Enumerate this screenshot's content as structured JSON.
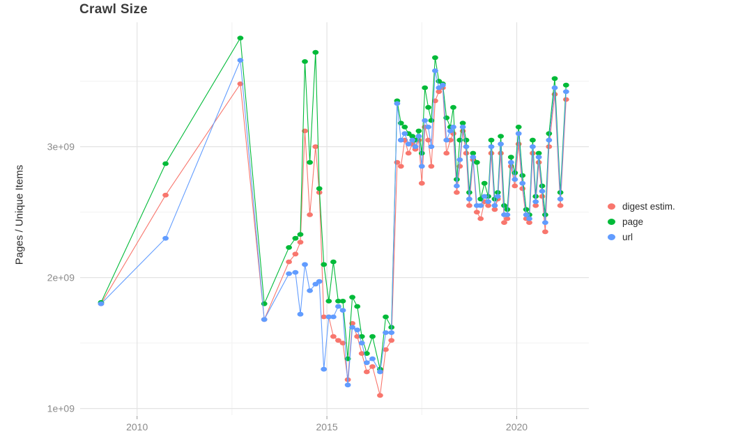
{
  "chart_data": {
    "type": "line",
    "markers": true,
    "title": "Crawl Size",
    "xlabel": "",
    "ylabel": "Pages / Unique Items",
    "x_range": [
      2008.5,
      2021.9
    ],
    "y_range": [
      0.95,
      3.95
    ],
    "y_scale": 1000000000.0,
    "x_ticks": {
      "values": [
        2010,
        2015,
        2020
      ],
      "labels": [
        "2010",
        "2015",
        "2020"
      ],
      "minor": [
        2012.5,
        2017.5
      ]
    },
    "y_ticks": {
      "values": [
        1,
        2,
        3
      ],
      "labels": [
        "1e+09",
        "2e+09",
        "3e+09"
      ],
      "minor": [
        1.5,
        2.5,
        3.5
      ]
    },
    "layout": {
      "grid": true,
      "legend_position": "right",
      "background": "#ffffff"
    },
    "colors": {
      "grid_major": "#e3e3e3",
      "grid_minor": "#f1f1f1",
      "tick_text": "#8a8a8a",
      "axis_tick": "#9a9a9a"
    },
    "series": [
      {
        "key": "digest",
        "name": "digest estim.",
        "color": "#F8766D",
        "column": 1
      },
      {
        "key": "page",
        "name": "page",
        "color": "#00BA38",
        "column": 2
      },
      {
        "key": "url",
        "name": "url",
        "color": "#619CFF",
        "column": 3
      }
    ],
    "points_format": [
      "year",
      "digest (1e9)",
      "page (1e9)",
      "url (1e9)"
    ],
    "points": [
      [
        2009.05,
        1.8,
        1.81,
        1.8
      ],
      [
        2010.75,
        2.63,
        2.87,
        2.3
      ],
      [
        2012.72,
        3.48,
        3.83,
        3.66
      ],
      [
        2013.35,
        1.68,
        1.8,
        1.68
      ],
      [
        2014.0,
        2.12,
        2.23,
        2.03
      ],
      [
        2014.17,
        2.18,
        2.3,
        2.04
      ],
      [
        2014.3,
        2.27,
        2.33,
        1.72
      ],
      [
        2014.42,
        3.12,
        3.65,
        2.1
      ],
      [
        2014.55,
        2.48,
        2.88,
        1.9
      ],
      [
        2014.7,
        3.0,
        3.72,
        1.95
      ],
      [
        2014.8,
        2.65,
        2.68,
        1.97
      ],
      [
        2014.92,
        1.7,
        2.1,
        1.3
      ],
      [
        2015.05,
        1.7,
        1.82,
        1.7
      ],
      [
        2015.17,
        1.55,
        2.12,
        1.7
      ],
      [
        2015.3,
        1.52,
        1.82,
        1.78
      ],
      [
        2015.42,
        1.5,
        1.82,
        1.75
      ],
      [
        2015.55,
        1.22,
        1.38,
        1.18
      ],
      [
        2015.67,
        1.65,
        1.85,
        1.62
      ],
      [
        2015.8,
        1.55,
        1.78,
        1.6
      ],
      [
        2015.92,
        1.42,
        1.55,
        1.5
      ],
      [
        2016.05,
        1.28,
        1.42,
        1.35
      ],
      [
        2016.2,
        1.32,
        1.55,
        1.38
      ],
      [
        2016.4,
        1.1,
        1.3,
        1.28
      ],
      [
        2016.55,
        1.45,
        1.7,
        1.58
      ],
      [
        2016.7,
        1.52,
        1.62,
        1.58
      ],
      [
        2016.85,
        2.88,
        3.35,
        3.33
      ],
      [
        2016.95,
        2.85,
        3.18,
        3.05
      ],
      [
        2017.05,
        3.05,
        3.15,
        3.1
      ],
      [
        2017.15,
        2.95,
        3.1,
        3.02
      ],
      [
        2017.25,
        3.02,
        3.08,
        3.05
      ],
      [
        2017.33,
        2.98,
        3.05,
        3.0
      ],
      [
        2017.42,
        3.05,
        3.12,
        3.08
      ],
      [
        2017.5,
        2.72,
        2.95,
        2.85
      ],
      [
        2017.58,
        3.15,
        3.45,
        3.2
      ],
      [
        2017.67,
        3.05,
        3.3,
        3.15
      ],
      [
        2017.75,
        2.85,
        3.2,
        3.0
      ],
      [
        2017.85,
        3.35,
        3.68,
        3.58
      ],
      [
        2017.95,
        3.42,
        3.5,
        3.45
      ],
      [
        2018.05,
        3.45,
        3.48,
        3.47
      ],
      [
        2018.15,
        2.95,
        3.22,
        3.05
      ],
      [
        2018.25,
        3.05,
        3.15,
        3.12
      ],
      [
        2018.33,
        3.1,
        3.3,
        3.15
      ],
      [
        2018.42,
        2.65,
        2.75,
        2.7
      ],
      [
        2018.5,
        2.85,
        3.05,
        2.9
      ],
      [
        2018.58,
        3.12,
        3.18,
        3.15
      ],
      [
        2018.67,
        2.95,
        3.05,
        3.0
      ],
      [
        2018.75,
        2.55,
        2.65,
        2.6
      ],
      [
        2018.85,
        2.9,
        2.95,
        2.92
      ],
      [
        2018.95,
        2.5,
        2.88,
        2.55
      ],
      [
        2019.05,
        2.45,
        2.6,
        2.55
      ],
      [
        2019.15,
        2.58,
        2.72,
        2.62
      ],
      [
        2019.25,
        2.55,
        2.62,
        2.58
      ],
      [
        2019.33,
        2.95,
        3.05,
        3.0
      ],
      [
        2019.42,
        2.52,
        2.6,
        2.55
      ],
      [
        2019.5,
        2.6,
        2.65,
        2.62
      ],
      [
        2019.58,
        2.95,
        3.08,
        3.02
      ],
      [
        2019.67,
        2.42,
        2.55,
        2.48
      ],
      [
        2019.75,
        2.45,
        2.52,
        2.48
      ],
      [
        2019.85,
        2.85,
        2.92,
        2.88
      ],
      [
        2019.95,
        2.7,
        2.8,
        2.75
      ],
      [
        2020.05,
        3.02,
        3.15,
        3.1
      ],
      [
        2020.15,
        2.68,
        2.78,
        2.72
      ],
      [
        2020.25,
        2.45,
        2.52,
        2.48
      ],
      [
        2020.33,
        2.42,
        2.48,
        2.45
      ],
      [
        2020.42,
        2.95,
        3.05,
        3.0
      ],
      [
        2020.5,
        2.55,
        2.62,
        2.58
      ],
      [
        2020.58,
        2.88,
        2.95,
        2.92
      ],
      [
        2020.67,
        2.62,
        2.7,
        2.66
      ],
      [
        2020.75,
        2.35,
        2.48,
        2.42
      ],
      [
        2020.85,
        3.0,
        3.1,
        3.05
      ],
      [
        2021.0,
        3.4,
        3.52,
        3.45
      ],
      [
        2021.15,
        2.55,
        2.65,
        2.6
      ],
      [
        2021.3,
        3.36,
        3.47,
        3.42
      ]
    ]
  }
}
